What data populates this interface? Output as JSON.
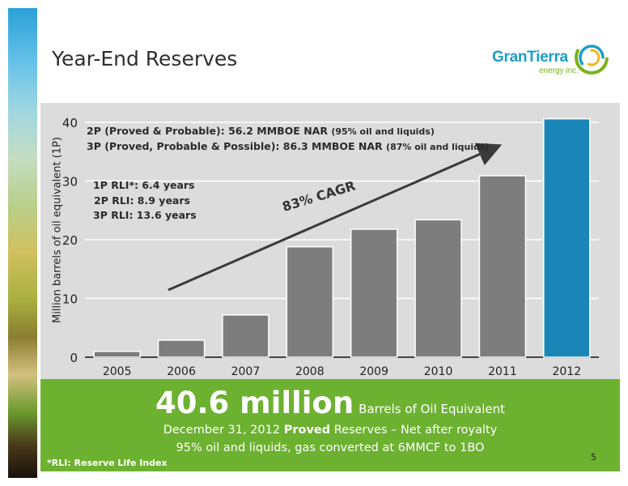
{
  "title": "Year-End Reserves",
  "logo": {
    "brand_a": "Gran",
    "brand_b": "Tierra",
    "sub": "energy inc."
  },
  "chart_data": {
    "type": "bar",
    "categories": [
      "2005",
      "2006",
      "2007",
      "2008",
      "2009",
      "2010",
      "2011",
      "2012"
    ],
    "values": [
      1,
      2.9,
      7.2,
      18.8,
      21.8,
      23.4,
      30.9,
      40.6
    ],
    "ylabel": "Million barrels of oil equivalent (1P)",
    "ylim": [
      0,
      40
    ],
    "yticks": [
      "0",
      "10",
      "20",
      "30",
      "40"
    ],
    "grid": true,
    "colors": {
      "bar": "#7d7d7d",
      "highlight": "#1a86b8"
    },
    "annotations": {
      "reserves_2p": "2P (Proved & Probable): 56.2 MMBOE NAR",
      "reserves_2p_note": "(95% oil and liquids)",
      "reserves_3p": "3P (Proved, Probable & Possible): 86.3 MMBOE NAR",
      "reserves_3p_note": "(87% oil and liquids)",
      "rli_1p": "1P RLI*: 6.4 years",
      "rli_2p": "2P RLI: 8.9 years",
      "rli_3p": "3P RLI: 13.6 years",
      "cagr": "83% CAGR"
    }
  },
  "banner": {
    "big_number": "40.6 million",
    "big_unit": "Barrels of Oil Equivalent",
    "line1_a": "December 31, 2012",
    "line1_b": "Proved",
    "line1_c": "Reserves – Net after royalty",
    "line2": "95% oil and liquids, gas converted at 6MMCF to 1BO",
    "footnote": "*RLI: Reserve Life Index",
    "page_number": "5"
  },
  "colors": {
    "banner": "#6cb130",
    "panel": "#dcdcdc",
    "brand_blue": "#1a9fc9",
    "brand_green": "#7ab317"
  }
}
